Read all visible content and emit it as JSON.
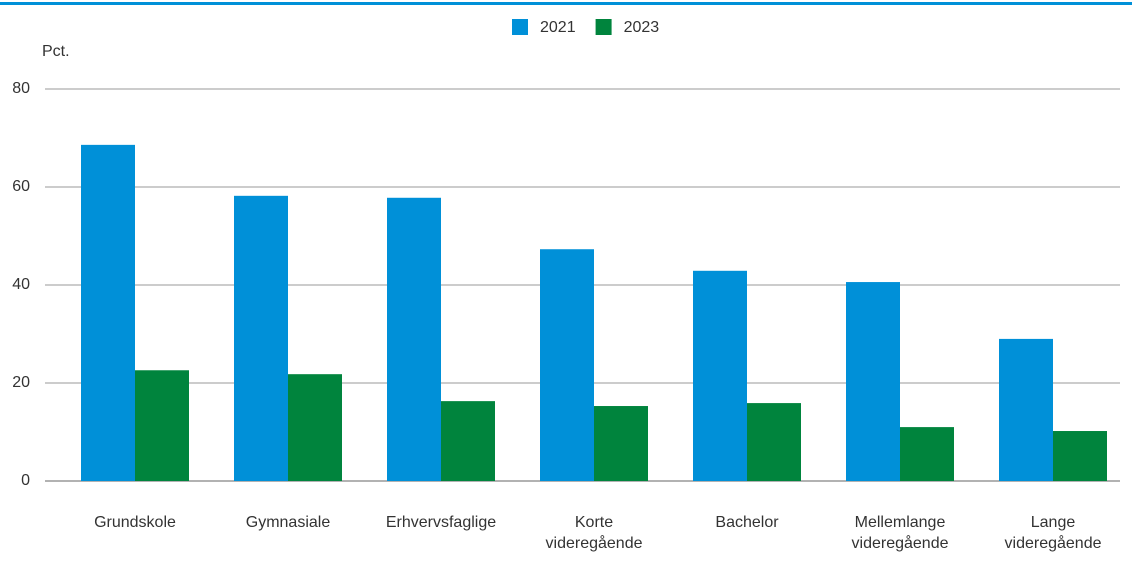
{
  "chart_data": {
    "type": "bar",
    "y_label": "Pct.",
    "categories": [
      "Grundskole",
      "Gymnasiale",
      "Erhvervsfaglige",
      "Korte videregående",
      "Bachelor",
      "Mellemlange videregående",
      "Lange videregående"
    ],
    "series": [
      {
        "name": "2021",
        "color": "#0090d8",
        "values": [
          68.6,
          58.2,
          57.8,
          47.3,
          42.9,
          40.6,
          29.0
        ]
      },
      {
        "name": "2023",
        "color": "#00843d",
        "values": [
          22.6,
          21.8,
          16.3,
          15.3,
          15.9,
          11.0,
          10.2
        ]
      }
    ],
    "ylim": [
      0,
      80
    ],
    "yticks": [
      0,
      20,
      40,
      60,
      80
    ],
    "grid": true,
    "legend": "top"
  }
}
